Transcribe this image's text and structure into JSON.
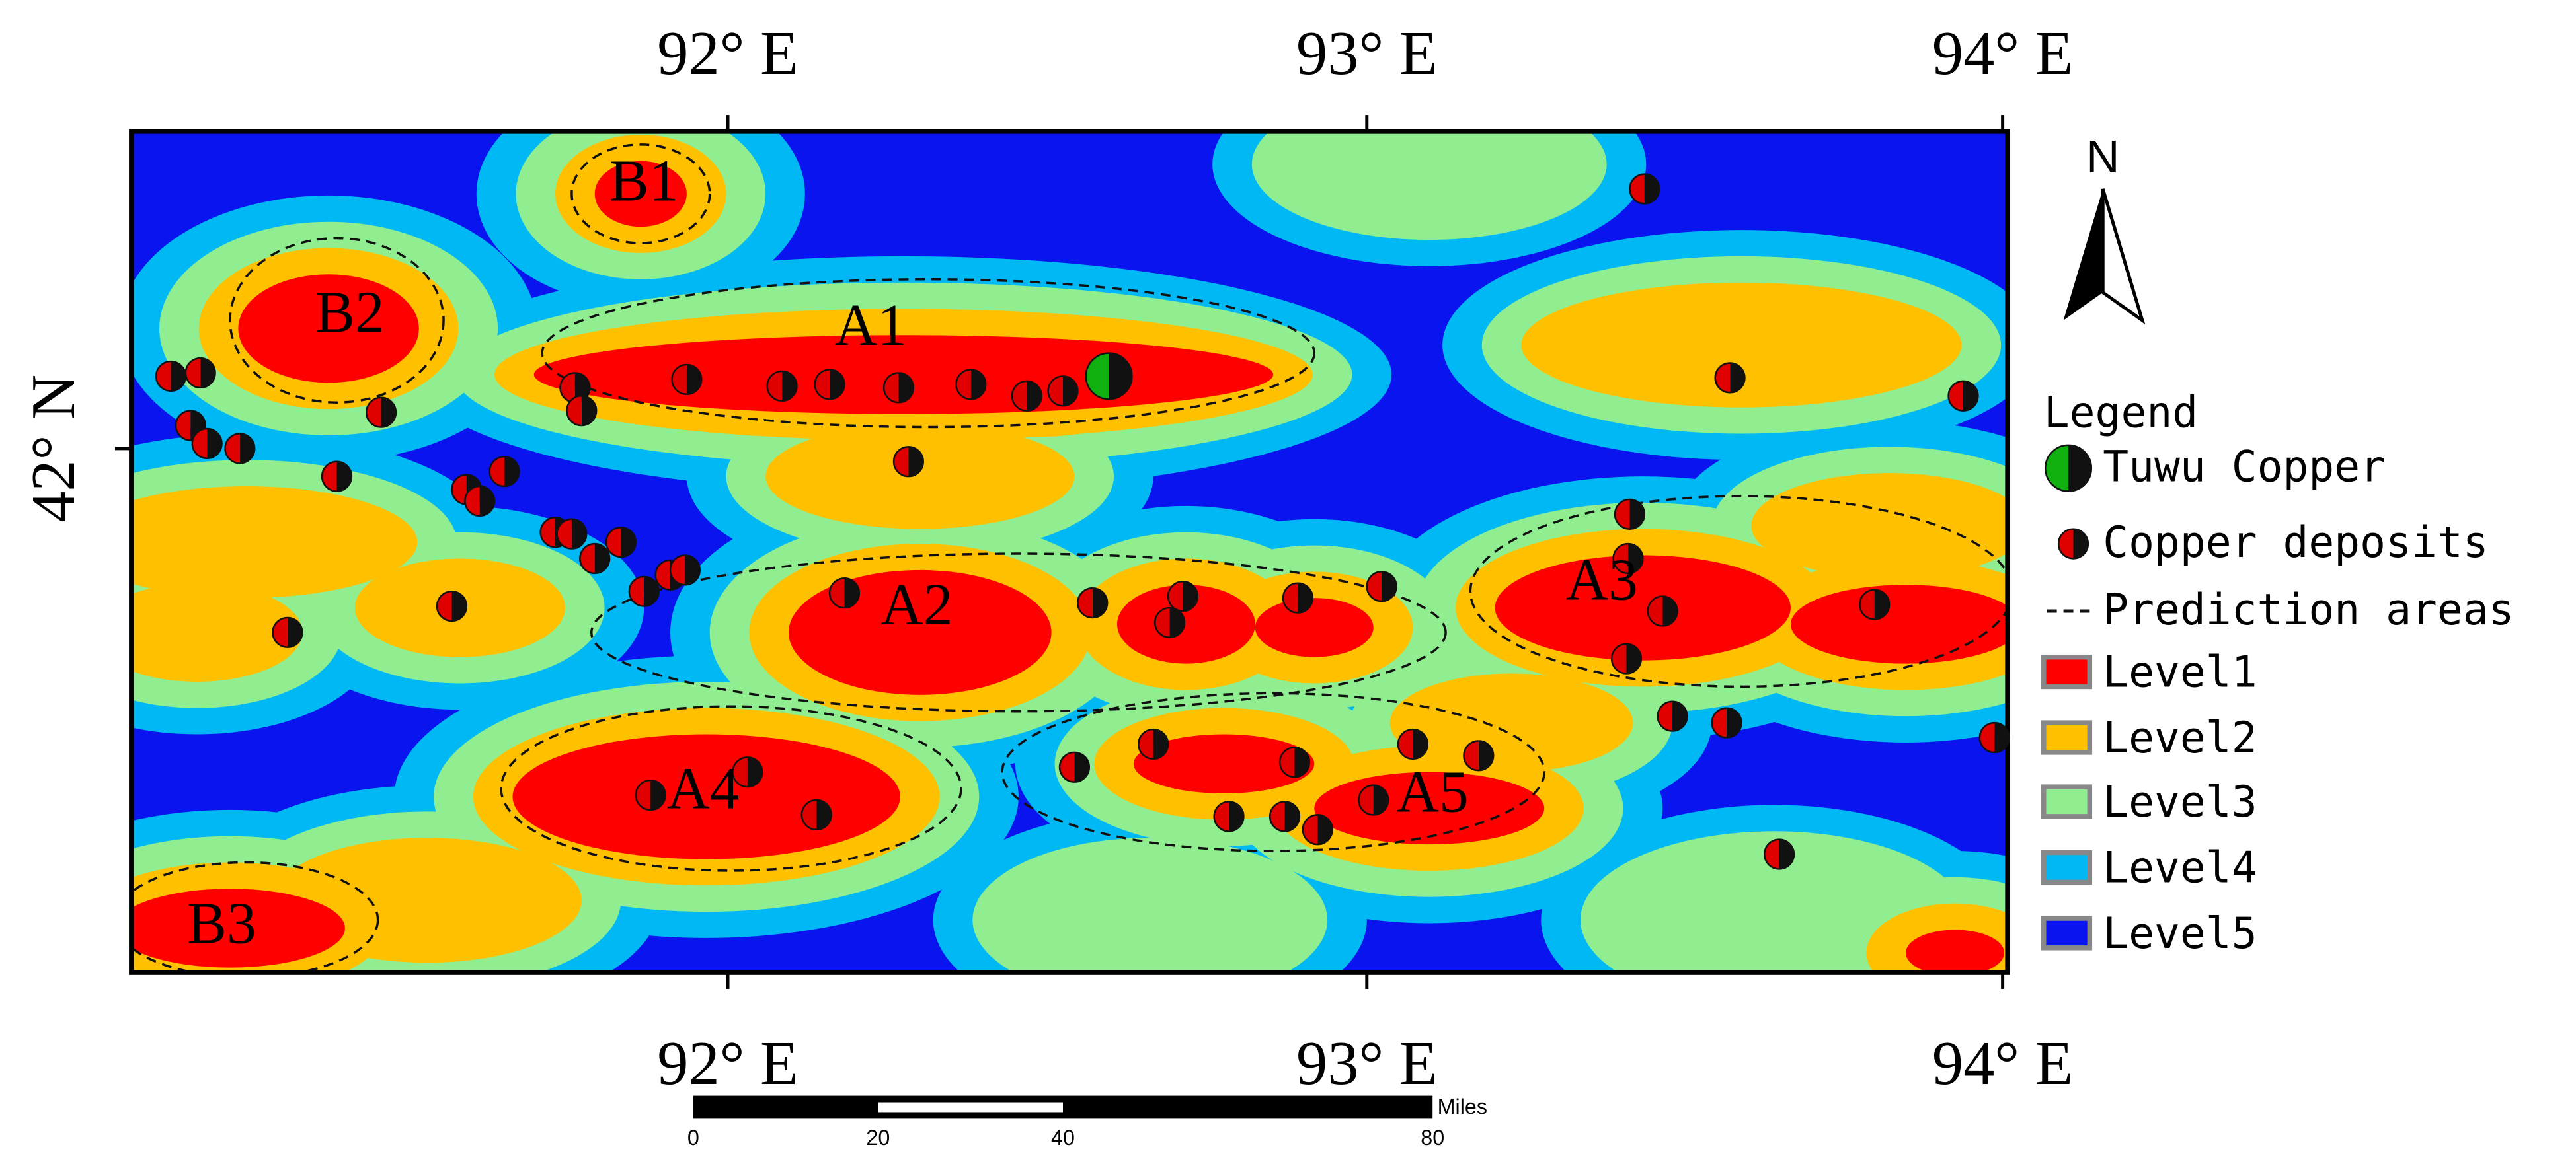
{
  "map": {
    "top_labels": [
      "92° E",
      "93° E",
      "94° E"
    ],
    "bottom_labels": [
      "92° E",
      "93° E",
      "94° E"
    ],
    "left_labels": [
      "42° N"
    ],
    "north": "N",
    "areas": [
      "A1",
      "A2",
      "A3",
      "A4",
      "A5",
      "B1",
      "B2",
      "B3"
    ],
    "legend": {
      "title": "Legend",
      "items": [
        "Tuwu Copper",
        "Copper deposits",
        "Prediction areas",
        "Level1",
        "Level2",
        "Level3",
        "Level4",
        "Level5"
      ]
    },
    "scale_bar": {
      "ticks": [
        0,
        20,
        40,
        80
      ],
      "unit": "Miles"
    }
  }
}
